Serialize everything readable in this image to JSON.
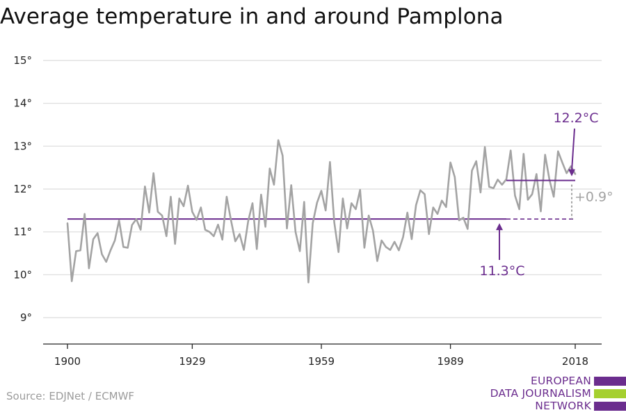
{
  "title": "Average temperature in and around Pamplona",
  "source": "Source: EDJNet / ECMWF",
  "logo": {
    "lines": [
      "EUROPEAN",
      "DATA JOURNALISM",
      "NETWORK"
    ],
    "colors": [
      "#6b2d8e",
      "#a5d02f",
      "#6b2d8e"
    ]
  },
  "colors": {
    "series": "#a3a3a3",
    "accent": "#6b2d8e",
    "annotation_gray": "#a3a3a3",
    "grid": "#dcdcdc",
    "axis": "#222222"
  },
  "chart_data": {
    "type": "line",
    "title": "Average temperature in and around Pamplona",
    "xlabel": "",
    "ylabel": "",
    "xlim": [
      1900,
      2018
    ],
    "ylim": [
      9,
      15
    ],
    "x_ticks": [
      1900,
      1929,
      1959,
      1989,
      2018
    ],
    "y_ticks": [
      9,
      10,
      11,
      12,
      13,
      14,
      15
    ],
    "y_tick_labels": [
      "9°",
      "10°",
      "11°",
      "12°",
      "13°",
      "14°",
      "15°"
    ],
    "grid": "horizontal",
    "series": [
      {
        "x": [
          1900,
          1901,
          1902,
          1903,
          1904,
          1905,
          1906,
          1907,
          1908,
          1909,
          1910,
          1911,
          1912,
          1913,
          1914,
          1915,
          1916,
          1917,
          1918,
          1919,
          1920,
          1921,
          1922,
          1923,
          1924,
          1925,
          1926,
          1927,
          1928,
          1929,
          1930,
          1931,
          1932,
          1933,
          1934,
          1935,
          1936,
          1937,
          1938,
          1939,
          1940,
          1941,
          1942,
          1943,
          1944,
          1945,
          1946,
          1947,
          1948,
          1949,
          1950,
          1951,
          1952,
          1953,
          1954,
          1955,
          1956,
          1957,
          1958,
          1959,
          1960,
          1961,
          1962,
          1963,
          1964,
          1965,
          1966,
          1967,
          1968,
          1969,
          1970,
          1971,
          1972,
          1973,
          1974,
          1975,
          1976,
          1977,
          1978,
          1979,
          1980,
          1981,
          1982,
          1983,
          1984,
          1985,
          1986,
          1987,
          1988,
          1989,
          1990,
          1991,
          1992,
          1993,
          1994,
          1995,
          1996,
          1997,
          1998,
          1999,
          2000,
          2001,
          2002,
          2003,
          2004,
          2005,
          2006,
          2007,
          2008,
          2009,
          2010,
          2011,
          2012,
          2013,
          2014,
          2015,
          2016,
          2017,
          2018
        ],
        "values": [
          11.2,
          9.85,
          10.55,
          10.57,
          11.42,
          10.15,
          10.83,
          10.97,
          10.48,
          10.3,
          10.57,
          10.8,
          11.27,
          10.65,
          10.63,
          11.16,
          11.3,
          11.05,
          12.06,
          11.45,
          12.37,
          11.47,
          11.38,
          10.9,
          11.82,
          10.72,
          11.78,
          11.6,
          12.08,
          11.47,
          11.28,
          11.57,
          11.05,
          11.0,
          10.9,
          11.17,
          10.82,
          11.82,
          11.27,
          10.78,
          10.95,
          10.58,
          11.25,
          11.67,
          10.6,
          11.87,
          11.12,
          12.48,
          12.1,
          13.14,
          12.78,
          11.08,
          12.09,
          11.0,
          10.55,
          11.7,
          9.82,
          11.2,
          11.68,
          11.96,
          11.5,
          12.63,
          11.22,
          10.53,
          11.78,
          11.08,
          11.67,
          11.53,
          11.98,
          10.63,
          11.38,
          11.03,
          10.32,
          10.8,
          10.65,
          10.58,
          10.77,
          10.57,
          10.88,
          11.45,
          10.83,
          11.62,
          11.97,
          11.88,
          10.95,
          11.57,
          11.42,
          11.73,
          11.58,
          12.62,
          12.28,
          11.27,
          11.33,
          11.07,
          12.43,
          12.65,
          11.92,
          12.98,
          12.05,
          12.02,
          12.22,
          12.1,
          12.23,
          12.9,
          11.85,
          11.53,
          12.82,
          11.75,
          11.88,
          12.35,
          11.48,
          12.8,
          12.22,
          11.82,
          12.88,
          12.62,
          12.37,
          12.53,
          12.35
        ]
      }
    ],
    "reference_lines": [
      {
        "value": 11.3,
        "from": 1900,
        "to": 2018,
        "label": "11.3°C",
        "solid_to": 2002
      },
      {
        "value": 12.2,
        "from": 2002,
        "to": 2018,
        "label": "12.2°C"
      }
    ],
    "difference_label": "+0.9°"
  }
}
